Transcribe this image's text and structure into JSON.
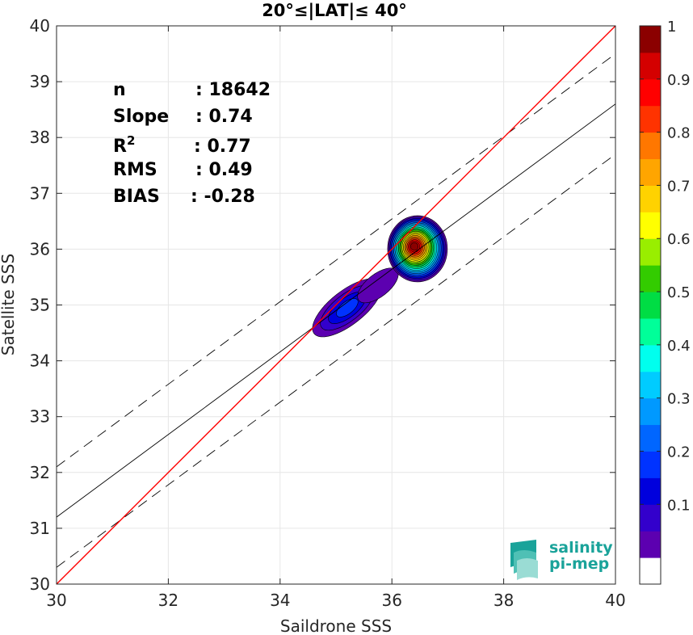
{
  "chart_data": {
    "type": "heatmap",
    "title": "20°≤|LAT|≤ 40°",
    "xlabel": "Saildrone SSS",
    "ylabel": "Satellite SSS",
    "xlim": [
      30,
      40
    ],
    "ylim": [
      30,
      40
    ],
    "xticks": [
      30,
      32,
      34,
      36,
      38,
      40
    ],
    "yticks": [
      30,
      31,
      32,
      33,
      34,
      35,
      36,
      37,
      38,
      39,
      40
    ],
    "grid": true,
    "stats": [
      {
        "label": "n",
        "value": ": 18642"
      },
      {
        "label": "Slope",
        "value": ": 0.74"
      },
      {
        "label": "R",
        "sup": "2",
        "value": ": 0.77"
      },
      {
        "label": "RMS",
        "value": ": 0.49"
      },
      {
        "label": "BIAS",
        "value": ": -0.28"
      }
    ],
    "lines": {
      "identity": {
        "slope": 1,
        "intercept": 0,
        "color": "#ff0000"
      },
      "regression": {
        "slope": 0.74,
        "intercept": 9.0,
        "color": "#000000"
      },
      "regression_offset": 0.9
    },
    "density_peaks": [
      {
        "x": 36.4,
        "y": 36.05,
        "peak": 1.0
      },
      {
        "x": 35.2,
        "y": 34.95,
        "peak": 0.22
      }
    ],
    "colorbar": {
      "min": 0,
      "max": 1,
      "ticks": [
        "0.1",
        "0.2",
        "0.3",
        "0.4",
        "0.5",
        "0.6",
        "0.7",
        "0.8",
        "0.9",
        "1"
      ],
      "levels": [
        "#ffffff",
        "#5c00b0",
        "#3300cc",
        "#0000dd",
        "#0033ff",
        "#0066ff",
        "#0099ff",
        "#00ccff",
        "#00ffee",
        "#00ff99",
        "#00dd44",
        "#33cc00",
        "#99ee00",
        "#ffff00",
        "#ffd200",
        "#ffa500",
        "#ff7700",
        "#ff3300",
        "#ff0000",
        "#d40000",
        "#8b0000"
      ]
    }
  },
  "logo": {
    "line1": "salinity",
    "line2": "pi-mep",
    "color": "#1aa39a"
  }
}
